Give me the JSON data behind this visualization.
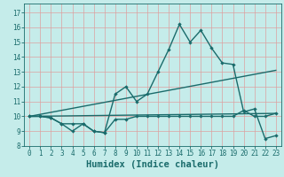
{
  "xlabel": "Humidex (Indice chaleur)",
  "bg_color": "#c5ecea",
  "grid_color": "#dda0a0",
  "line_color": "#1a6b6b",
  "xlim": [
    -0.5,
    23.5
  ],
  "ylim": [
    8,
    17.6
  ],
  "xticks": [
    0,
    1,
    2,
    3,
    4,
    5,
    6,
    7,
    8,
    9,
    10,
    11,
    12,
    13,
    14,
    15,
    16,
    17,
    18,
    19,
    20,
    21,
    22,
    23
  ],
  "yticks": [
    8,
    9,
    10,
    11,
    12,
    13,
    14,
    15,
    16,
    17
  ],
  "series1_x": [
    0,
    1,
    2,
    3,
    4,
    5,
    6,
    7,
    8,
    9,
    10,
    11,
    12,
    13,
    14,
    15,
    16,
    17,
    18,
    19,
    20,
    21,
    22,
    23
  ],
  "series1_y": [
    10.0,
    10.0,
    9.9,
    9.5,
    9.0,
    9.5,
    9.0,
    8.9,
    11.5,
    12.0,
    11.0,
    11.5,
    13.0,
    14.5,
    16.2,
    15.0,
    15.8,
    14.6,
    13.6,
    13.5,
    10.3,
    10.5,
    8.5,
    8.7
  ],
  "series2_x": [
    0,
    1,
    2,
    3,
    4,
    5,
    6,
    7,
    8,
    9,
    10,
    11,
    12,
    13,
    14,
    15,
    16,
    17,
    18,
    19,
    20,
    21,
    22,
    23
  ],
  "series2_y": [
    10.0,
    10.0,
    9.9,
    9.5,
    9.5,
    9.5,
    9.0,
    8.9,
    9.8,
    9.8,
    10.0,
    10.0,
    10.0,
    10.0,
    10.0,
    10.0,
    10.0,
    10.0,
    10.0,
    10.0,
    10.4,
    10.0,
    10.0,
    10.2
  ],
  "series3_x": [
    0,
    23
  ],
  "series3_y": [
    10.0,
    13.1
  ],
  "series4_x": [
    0,
    23
  ],
  "series4_y": [
    10.0,
    10.2
  ],
  "marker_size": 2.2,
  "linewidth": 1.0,
  "tick_fontsize": 5.5,
  "label_fontsize": 7.5
}
